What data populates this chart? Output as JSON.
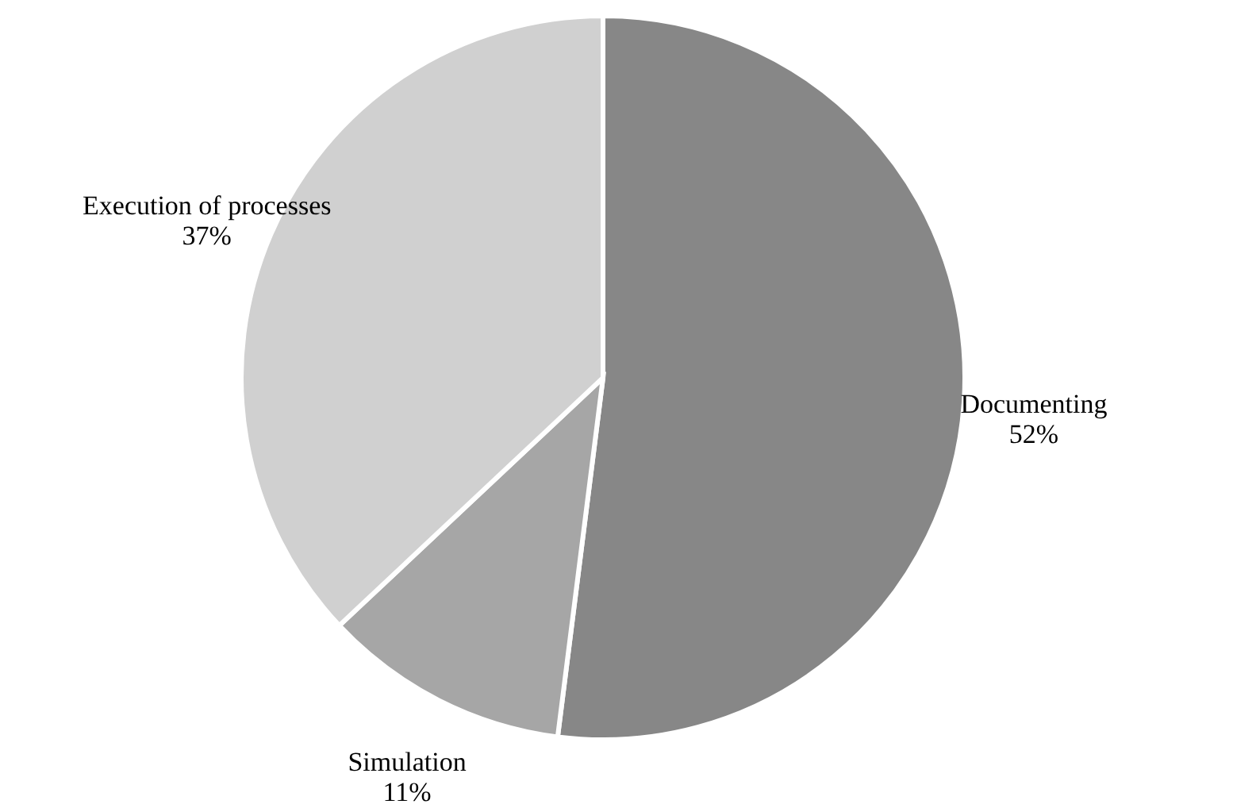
{
  "chart_data": {
    "type": "pie",
    "categories": [
      "Documenting",
      "Simulation",
      "Execution of processes"
    ],
    "values": [
      52,
      11,
      37
    ],
    "value_labels": [
      "52%",
      "11%",
      "37%"
    ],
    "colors": [
      "#878787",
      "#a6a6a6",
      "#d0d0d0"
    ]
  }
}
